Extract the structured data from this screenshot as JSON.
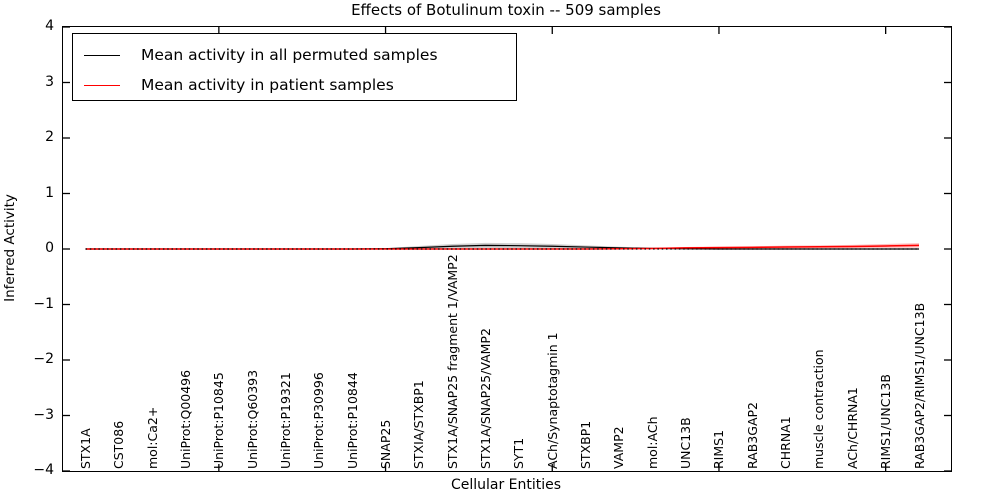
{
  "title": "Effects of Botulinum toxin -- 509 samples",
  "xlabel": "Cellular Entities",
  "ylabel": "Inferred Activity",
  "legend": {
    "items": [
      {
        "label": "Mean activity in all permuted samples",
        "color": "#000000"
      },
      {
        "label": "Mean activity in patient samples",
        "color": "#ff0000"
      }
    ]
  },
  "chart_data": {
    "type": "line",
    "title": "Effects of Botulinum toxin -- 509 samples",
    "xlabel": "Cellular Entities",
    "ylabel": "Inferred Activity",
    "ylim": [
      -4,
      4
    ],
    "ytick_values": [
      4,
      3,
      2,
      1,
      0,
      -1,
      -2,
      -3,
      -4
    ],
    "ytick_labels": [
      "4",
      "3",
      "2",
      "1",
      "0",
      "−1",
      "−2",
      "−3",
      "−4"
    ],
    "grid": false,
    "legend_position": "upper left",
    "zero_line": true,
    "major_tick_indices": [
      4,
      9,
      14,
      19,
      24
    ],
    "categories": [
      "STX1A",
      "CST086",
      "mol:Ca2+",
      "UniProt:Q00496",
      "UniProt:P10845",
      "UniProt:Q60393",
      "UniProt:P19321",
      "UniProt:P30996",
      "UniProt:P10844",
      "SNAP25",
      "STXIA/STXBP1",
      "STX1A/SNAP25 fragment 1/VAMP2",
      "STX1A/SNAP25/VAMP2",
      "SYT1",
      "ACh/Synaptotagmin 1",
      "STXBP1",
      "VAMP2",
      "mol:ACh",
      "UNC13B",
      "RIMS1",
      "RAB3GAP2",
      "CHRNA1",
      "muscle contraction",
      "ACh/CHRNA1",
      "RIMS1/UNC13B",
      "RAB3GAP2/RIMS1/UNC13B"
    ],
    "series": [
      {
        "name": "Mean activity in all permuted samples",
        "color": "#000000",
        "line_width": 1.2,
        "values": [
          0,
          0,
          0,
          0,
          0,
          0,
          0,
          0,
          0,
          0.005,
          0.025,
          0.05,
          0.065,
          0.06,
          0.05,
          0.035,
          0.02,
          0.01,
          0.005,
          0,
          0,
          0,
          0,
          0,
          0,
          0
        ],
        "band": [
          0,
          0,
          0,
          0,
          0,
          0,
          0,
          0,
          0,
          0.01,
          0.03,
          0.04,
          0.045,
          0.045,
          0.04,
          0.03,
          0.02,
          0.015,
          0.01,
          0,
          0,
          0,
          0,
          0,
          0,
          0
        ],
        "band_color": "rgba(100,100,100,0.30)"
      },
      {
        "name": "Mean activity in patient samples",
        "color": "#ff0000",
        "line_width": 1.5,
        "values": [
          0,
          0,
          0,
          0,
          0,
          0,
          0,
          0,
          0,
          0,
          0,
          0,
          0,
          0,
          0,
          0,
          0.005,
          0.01,
          0.02,
          0.025,
          0.03,
          0.035,
          0.04,
          0.045,
          0.055,
          0.065
        ],
        "band": [
          0,
          0,
          0,
          0,
          0,
          0,
          0,
          0,
          0,
          0,
          0,
          0,
          0,
          0,
          0,
          0,
          0.005,
          0.01,
          0.015,
          0.02,
          0.02,
          0.025,
          0.025,
          0.03,
          0.035,
          0.04
        ],
        "band_color": "rgba(255,40,40,0.30)"
      }
    ]
  }
}
